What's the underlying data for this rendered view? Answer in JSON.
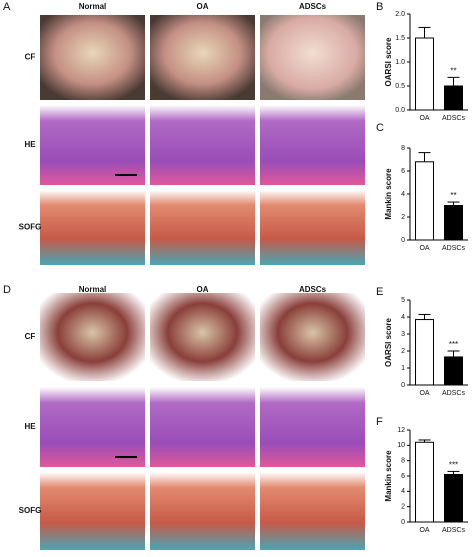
{
  "figure": {
    "groups": [
      {
        "label": "A",
        "columns": [
          "Normal",
          "OA",
          "ADSCs"
        ],
        "rows": [
          "CF",
          "HE",
          "SOFG"
        ]
      },
      {
        "label": "D",
        "columns": [
          "Normal",
          "OA",
          "ADSCs"
        ],
        "rows": [
          "CF",
          "HE",
          "SOFG"
        ]
      }
    ],
    "chart_panels": [
      "B",
      "C",
      "E",
      "F"
    ]
  },
  "chart_data": [
    {
      "type": "bar",
      "ylabel": "OARSI score",
      "categories": [
        "OA",
        "ADSCs"
      ],
      "values": [
        1.5,
        0.5
      ],
      "errors": [
        0.22,
        0.18
      ],
      "colors": [
        "#ffffff",
        "#000000"
      ],
      "annotations": [
        null,
        "**"
      ],
      "ylim": [
        0,
        2
      ],
      "yticks": [
        {
          "value": 0,
          "label": "0.0"
        },
        {
          "value": 0.5,
          "label": "0.5"
        },
        {
          "value": 1,
          "label": "1.0"
        },
        {
          "value": 1.5,
          "label": "1.5"
        },
        {
          "value": 2,
          "label": "2.0"
        }
      ]
    },
    {
      "type": "bar",
      "ylabel": "Mankin score",
      "categories": [
        "OA",
        "ADSCs"
      ],
      "values": [
        6.8,
        3.0
      ],
      "errors": [
        0.8,
        0.3
      ],
      "colors": [
        "#ffffff",
        "#000000"
      ],
      "annotations": [
        null,
        "**"
      ],
      "ylim": [
        0,
        8
      ],
      "yticks": [
        0,
        2,
        4,
        6,
        8
      ]
    },
    {
      "type": "bar",
      "ylabel": "OARSI score",
      "categories": [
        "OA",
        "ADSCs"
      ],
      "values": [
        3.85,
        1.65
      ],
      "errors": [
        0.3,
        0.35
      ],
      "colors": [
        "#ffffff",
        "#000000"
      ],
      "annotations": [
        null,
        "***"
      ],
      "ylim": [
        0,
        5
      ],
      "yticks": [
        0,
        1,
        2,
        3,
        4,
        5
      ]
    },
    {
      "type": "bar",
      "ylabel": "Mankin score",
      "categories": [
        "OA",
        "ADSCs"
      ],
      "values": [
        10.4,
        6.2
      ],
      "errors": [
        0.3,
        0.4
      ],
      "colors": [
        "#ffffff",
        "#000000"
      ],
      "annotations": [
        null,
        "***"
      ],
      "ylim": [
        0,
        12
      ],
      "yticks": [
        0,
        2,
        4,
        6,
        8,
        10,
        12
      ]
    }
  ]
}
